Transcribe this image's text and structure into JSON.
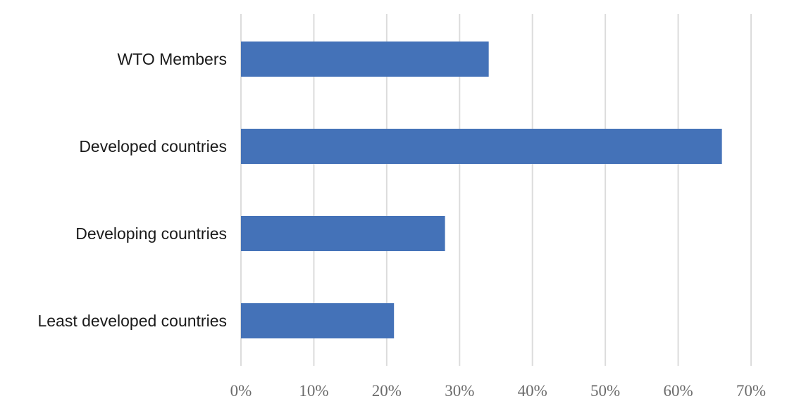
{
  "chart_data": {
    "type": "bar",
    "orientation": "horizontal",
    "categories": [
      "WTO Members",
      "Developed countries",
      "Developing countries",
      "Least developed countries"
    ],
    "values": [
      34,
      66,
      28,
      21
    ],
    "xlim": [
      0,
      70
    ],
    "xticks": [
      "0%",
      "10%",
      "20%",
      "30%",
      "40%",
      "50%",
      "60%",
      "70%"
    ],
    "grid": true,
    "bar_color": "#4472b8",
    "title": "",
    "xlabel": "",
    "ylabel": ""
  }
}
